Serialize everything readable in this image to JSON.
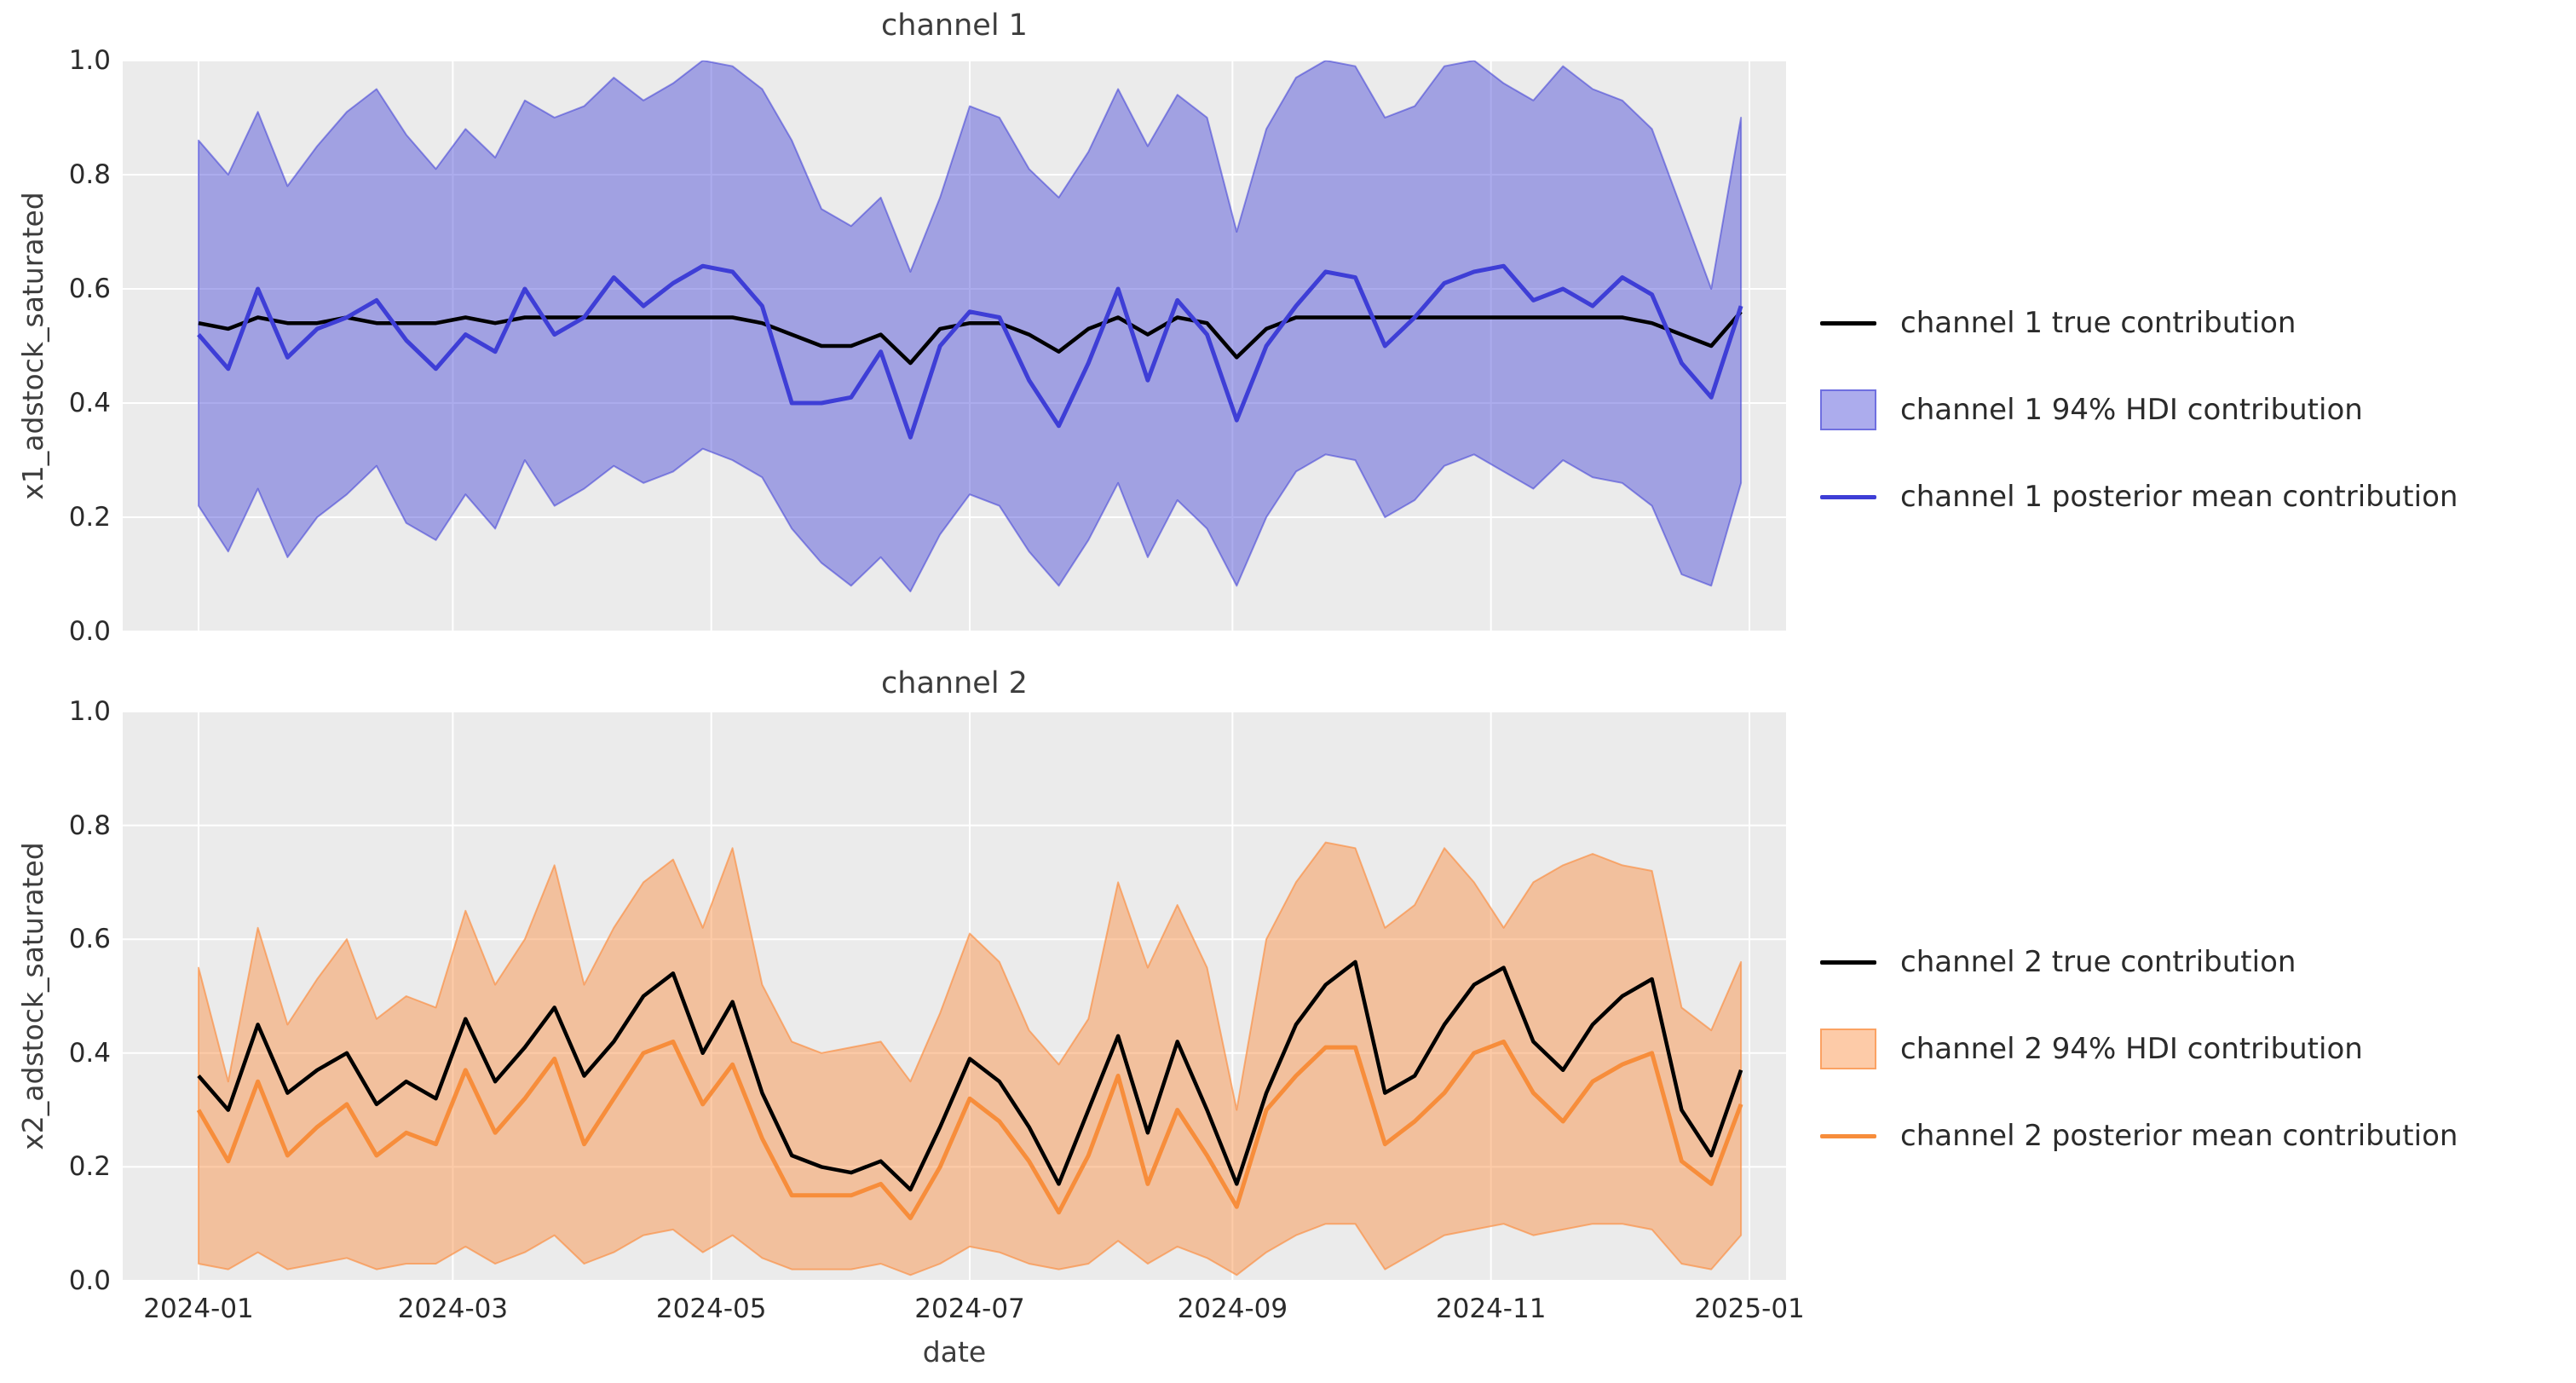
{
  "figure": {
    "xlabel": "date",
    "x_tick_labels": [
      "2024-01",
      "2024-03",
      "2024-05",
      "2024-07",
      "2024-09",
      "2024-11",
      "2025-01"
    ],
    "y_tick_labels": [
      "0.0",
      "0.2",
      "0.4",
      "0.6",
      "0.8",
      "1.0"
    ]
  },
  "colors": {
    "plot_background": "#ebebeb",
    "gridline": "#ffffff",
    "true_line": "#000000",
    "channel1_line": "#3e3ed6",
    "channel1_fill": "rgba(62,62,214,0.43)",
    "channel1_band_edge": "rgba(62,62,214,0.55)",
    "channel2_line": "#f78d3b",
    "channel2_fill": "rgba(251,140,62,0.45)",
    "channel2_band_edge": "rgba(251,140,62,0.65)",
    "text": "#2b2b2b"
  },
  "legends": [
    {
      "items": [
        {
          "label": "channel 1 true contribution",
          "swatch": "line",
          "color_key": "true_line"
        },
        {
          "label": "channel 1 94% HDI contribution",
          "swatch": "patch",
          "color_key": "channel1_fill",
          "edge_key": "channel1_band_edge"
        },
        {
          "label": "channel 1 posterior mean contribution",
          "swatch": "line",
          "color_key": "channel1_line"
        }
      ]
    },
    {
      "items": [
        {
          "label": "channel 2 true contribution",
          "swatch": "line",
          "color_key": "true_line"
        },
        {
          "label": "channel 2 94% HDI contribution",
          "swatch": "patch",
          "color_key": "channel2_fill",
          "edge_key": "channel2_band_edge"
        },
        {
          "label": "channel 2 posterior mean contribution",
          "swatch": "line",
          "color_key": "channel2_line"
        }
      ]
    }
  ],
  "chart_data": {
    "type": "line",
    "x_label": "date",
    "x_range": [
      "2024-01-01",
      "2025-01-01"
    ],
    "y_range": [
      0.0,
      1.0
    ],
    "grid": true,
    "legend_position": "right",
    "dates": [
      "2024-01-01",
      "2024-01-08",
      "2024-01-15",
      "2024-01-22",
      "2024-01-29",
      "2024-02-05",
      "2024-02-12",
      "2024-02-19",
      "2024-02-26",
      "2024-03-04",
      "2024-03-11",
      "2024-03-18",
      "2024-03-25",
      "2024-04-01",
      "2024-04-08",
      "2024-04-15",
      "2024-04-22",
      "2024-04-29",
      "2024-05-06",
      "2024-05-13",
      "2024-05-20",
      "2024-05-27",
      "2024-06-03",
      "2024-06-10",
      "2024-06-17",
      "2024-06-24",
      "2024-07-01",
      "2024-07-08",
      "2024-07-15",
      "2024-07-22",
      "2024-07-29",
      "2024-08-05",
      "2024-08-12",
      "2024-08-19",
      "2024-08-26",
      "2024-09-02",
      "2024-09-09",
      "2024-09-16",
      "2024-09-23",
      "2024-09-30",
      "2024-10-07",
      "2024-10-14",
      "2024-10-21",
      "2024-10-28",
      "2024-11-04",
      "2024-11-11",
      "2024-11-18",
      "2024-11-25",
      "2024-12-02",
      "2024-12-09",
      "2024-12-16",
      "2024-12-23",
      "2024-12-30"
    ],
    "panels": [
      {
        "title": "channel 1",
        "ylabel": "x1_adstock_saturated",
        "ylim": [
          0.0,
          1.0
        ],
        "series": [
          {
            "name": "channel 1 true contribution",
            "values": [
              0.54,
              0.53,
              0.55,
              0.54,
              0.54,
              0.55,
              0.54,
              0.54,
              0.54,
              0.55,
              0.54,
              0.55,
              0.55,
              0.55,
              0.55,
              0.55,
              0.55,
              0.55,
              0.55,
              0.54,
              0.52,
              0.5,
              0.5,
              0.52,
              0.47,
              0.53,
              0.54,
              0.54,
              0.52,
              0.49,
              0.53,
              0.55,
              0.52,
              0.55,
              0.54,
              0.48,
              0.53,
              0.55,
              0.55,
              0.55,
              0.55,
              0.55,
              0.55,
              0.55,
              0.55,
              0.55,
              0.55,
              0.55,
              0.55,
              0.54,
              0.52,
              0.5,
              0.56
            ]
          },
          {
            "name": "channel 1 posterior mean contribution",
            "values": [
              0.52,
              0.46,
              0.6,
              0.48,
              0.53,
              0.55,
              0.58,
              0.51,
              0.46,
              0.52,
              0.49,
              0.6,
              0.52,
              0.55,
              0.62,
              0.57,
              0.61,
              0.64,
              0.63,
              0.57,
              0.4,
              0.4,
              0.41,
              0.49,
              0.34,
              0.5,
              0.56,
              0.55,
              0.44,
              0.36,
              0.47,
              0.6,
              0.44,
              0.58,
              0.52,
              0.37,
              0.5,
              0.57,
              0.63,
              0.62,
              0.5,
              0.55,
              0.61,
              0.63,
              0.64,
              0.58,
              0.6,
              0.57,
              0.62,
              0.59,
              0.47,
              0.41,
              0.57
            ]
          },
          {
            "name": "channel 1 94% HDI upper",
            "values": [
              0.86,
              0.8,
              0.91,
              0.78,
              0.85,
              0.91,
              0.95,
              0.87,
              0.81,
              0.88,
              0.83,
              0.93,
              0.9,
              0.92,
              0.97,
              0.93,
              0.96,
              1.0,
              0.99,
              0.95,
              0.86,
              0.74,
              0.71,
              0.76,
              0.63,
              0.76,
              0.92,
              0.9,
              0.81,
              0.76,
              0.84,
              0.95,
              0.85,
              0.94,
              0.9,
              0.7,
              0.88,
              0.97,
              1.0,
              0.99,
              0.9,
              0.92,
              0.99,
              1.0,
              0.96,
              0.93,
              0.99,
              0.95,
              0.93,
              0.88,
              0.74,
              0.6,
              0.9
            ]
          },
          {
            "name": "channel 1 94% HDI lower",
            "values": [
              0.22,
              0.14,
              0.25,
              0.13,
              0.2,
              0.24,
              0.29,
              0.19,
              0.16,
              0.24,
              0.18,
              0.3,
              0.22,
              0.25,
              0.29,
              0.26,
              0.28,
              0.32,
              0.3,
              0.27,
              0.18,
              0.12,
              0.08,
              0.13,
              0.07,
              0.17,
              0.24,
              0.22,
              0.14,
              0.08,
              0.16,
              0.26,
              0.13,
              0.23,
              0.18,
              0.08,
              0.2,
              0.28,
              0.31,
              0.3,
              0.2,
              0.23,
              0.29,
              0.31,
              0.28,
              0.25,
              0.3,
              0.27,
              0.26,
              0.22,
              0.1,
              0.08,
              0.26
            ]
          }
        ]
      },
      {
        "title": "channel 2",
        "ylabel": "x2_adstock_saturated",
        "ylim": [
          0.0,
          1.0
        ],
        "series": [
          {
            "name": "channel 2 true contribution",
            "values": [
              0.36,
              0.3,
              0.45,
              0.33,
              0.37,
              0.4,
              0.31,
              0.35,
              0.32,
              0.46,
              0.35,
              0.41,
              0.48,
              0.36,
              0.42,
              0.5,
              0.54,
              0.4,
              0.49,
              0.33,
              0.22,
              0.2,
              0.19,
              0.21,
              0.16,
              0.27,
              0.39,
              0.35,
              0.27,
              0.17,
              0.3,
              0.43,
              0.26,
              0.42,
              0.3,
              0.17,
              0.33,
              0.45,
              0.52,
              0.56,
              0.33,
              0.36,
              0.45,
              0.52,
              0.55,
              0.42,
              0.37,
              0.45,
              0.5,
              0.53,
              0.3,
              0.22,
              0.37
            ]
          },
          {
            "name": "channel 2 posterior mean contribution",
            "values": [
              0.3,
              0.21,
              0.35,
              0.22,
              0.27,
              0.31,
              0.22,
              0.26,
              0.24,
              0.37,
              0.26,
              0.32,
              0.39,
              0.24,
              0.32,
              0.4,
              0.42,
              0.31,
              0.38,
              0.25,
              0.15,
              0.15,
              0.15,
              0.17,
              0.11,
              0.2,
              0.32,
              0.28,
              0.21,
              0.12,
              0.22,
              0.36,
              0.17,
              0.3,
              0.22,
              0.13,
              0.3,
              0.36,
              0.41,
              0.41,
              0.24,
              0.28,
              0.33,
              0.4,
              0.42,
              0.33,
              0.28,
              0.35,
              0.38,
              0.4,
              0.21,
              0.17,
              0.31
            ]
          },
          {
            "name": "channel 2 94% HDI upper",
            "values": [
              0.55,
              0.35,
              0.62,
              0.45,
              0.53,
              0.6,
              0.46,
              0.5,
              0.48,
              0.65,
              0.52,
              0.6,
              0.73,
              0.52,
              0.62,
              0.7,
              0.74,
              0.62,
              0.76,
              0.52,
              0.42,
              0.4,
              0.41,
              0.42,
              0.35,
              0.47,
              0.61,
              0.56,
              0.44,
              0.38,
              0.46,
              0.7,
              0.55,
              0.66,
              0.55,
              0.3,
              0.6,
              0.7,
              0.77,
              0.76,
              0.62,
              0.66,
              0.76,
              0.7,
              0.62,
              0.7,
              0.73,
              0.75,
              0.73,
              0.72,
              0.48,
              0.44,
              0.56
            ]
          },
          {
            "name": "channel 2 94% HDI lower",
            "values": [
              0.03,
              0.02,
              0.05,
              0.02,
              0.03,
              0.04,
              0.02,
              0.03,
              0.03,
              0.06,
              0.03,
              0.05,
              0.08,
              0.03,
              0.05,
              0.08,
              0.09,
              0.05,
              0.08,
              0.04,
              0.02,
              0.02,
              0.02,
              0.03,
              0.01,
              0.03,
              0.06,
              0.05,
              0.03,
              0.02,
              0.03,
              0.07,
              0.03,
              0.06,
              0.04,
              0.01,
              0.05,
              0.08,
              0.1,
              0.1,
              0.02,
              0.05,
              0.08,
              0.09,
              0.1,
              0.08,
              0.09,
              0.1,
              0.1,
              0.09,
              0.03,
              0.02,
              0.08
            ]
          }
        ]
      }
    ]
  }
}
